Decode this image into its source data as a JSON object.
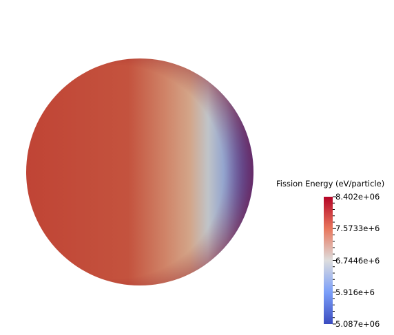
{
  "scalar_bar": {
    "title": "Fission Energy (eV/particle)",
    "labels": [
      "8.402e+06",
      "7.5733e+6",
      "6.7446e+6",
      "5.916e+6",
      "5.087e+06"
    ],
    "colors": {
      "high": "#b40426",
      "mid": "#dddddd",
      "low": "#3b4cc0"
    }
  }
}
